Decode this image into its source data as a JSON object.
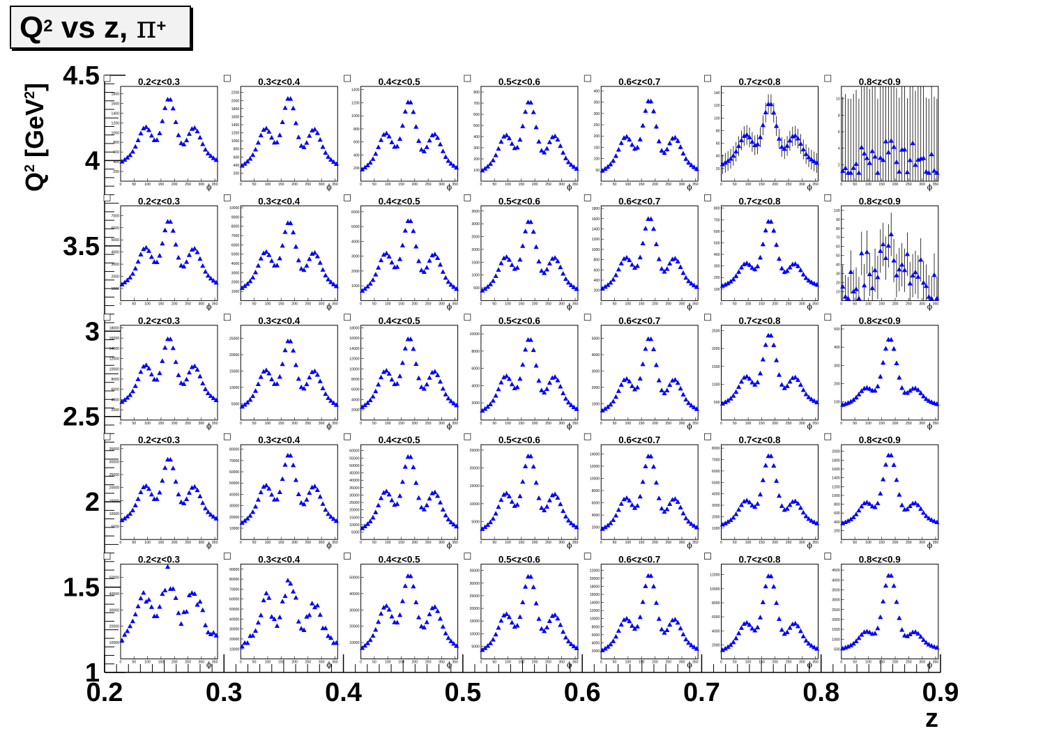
{
  "title": {
    "base": "Q",
    "sup": "2",
    "middle": " vs z, ",
    "pi": "π",
    "plus": "+"
  },
  "y_axis_title": {
    "base": "Q",
    "sup": "2",
    "rest": " [GeV",
    "sup2": "2",
    "end": "]"
  },
  "x_axis_title": "z",
  "colors": {
    "marker": "#0000ff",
    "axis": "#000000",
    "background": "#ffffff"
  },
  "chart_data": {
    "type": "scatter",
    "description_of_grid": "rows are Q2 bins (top = highest), columns are z bins",
    "outer_x": {
      "label": "z",
      "ticks": [
        "0.2",
        "0.3",
        "0.4",
        "0.5",
        "0.6",
        "0.7",
        "0.8",
        "0.9"
      ],
      "range": [
        0.2,
        0.9
      ]
    },
    "outer_y": {
      "label": "Q² [GeV²]",
      "ticks": [
        "1",
        "1.5",
        "2",
        "2.5",
        "3",
        "3.5",
        "4",
        "4.5"
      ],
      "range": [
        1,
        4.5
      ]
    },
    "panel_x_axis": {
      "label": "ϕ",
      "ticks": [
        "0",
        "50",
        "100",
        "150",
        "200",
        "250",
        "300",
        "350"
      ],
      "range": [
        0,
        360
      ]
    },
    "z_bins": [
      "0.2<z<0.3",
      "0.3<z<0.4",
      "0.4<z<0.5",
      "0.5<z<0.6",
      "0.6<z<0.7",
      "0.7<z<0.8",
      "0.8<z<0.9"
    ],
    "rows": [
      {
        "yticks": [
          [
            200,
            "200"
          ],
          [
            400,
            "400"
          ],
          [
            600,
            "600"
          ],
          [
            800,
            "800"
          ],
          [
            1000,
            "1000"
          ],
          [
            1200,
            "1200"
          ],
          [
            1400,
            "1400"
          ],
          [
            1600,
            "1600"
          ],
          [
            1800,
            "1800"
          ]
        ],
        "ymax": 1950,
        "panels": [
          {
            "ymax": 1950,
            "yticks": [
              200,
              400,
              600,
              800,
              1000,
              1200,
              1400,
              1600,
              1800
            ],
            "peak": 1800,
            "base": 300,
            "side": 0.62,
            "err": 0
          },
          {
            "ymax": 2350,
            "yticks": [
              200,
              400,
              600,
              800,
              1000,
              1200,
              1400,
              1600,
              1800,
              2000,
              2200
            ],
            "peak": 2200,
            "base": 250,
            "side": 0.62,
            "err": 0
          },
          {
            "ymax": 1450,
            "yticks": [
              200,
              400,
              600,
              800,
              1000,
              1200,
              1400
            ],
            "peak": 1300,
            "base": 100,
            "side": 0.6,
            "err": 0
          },
          {
            "ymax": 850,
            "yticks": [
              100,
              200,
              300,
              400,
              500,
              600,
              700,
              800
            ],
            "peak": 760,
            "base": 50,
            "side": 0.58,
            "err": 0
          },
          {
            "ymax": 420,
            "yticks": [
              50,
              100,
              150,
              200,
              250,
              300,
              350,
              400
            ],
            "peak": 380,
            "base": 25,
            "side": 0.55,
            "err": 8
          },
          {
            "ymax": 150,
            "yticks": [
              20,
              40,
              60,
              80,
              100,
              120,
              140
            ],
            "peak": 130,
            "base": 20,
            "side": 0.55,
            "err": 12
          },
          {
            "ymax": 11.5,
            "yticks": [
              2,
              4,
              6,
              8,
              10
            ],
            "peak": 5,
            "base": 1,
            "side": 0.6,
            "err": 3,
            "noisy": true
          }
        ]
      },
      {
        "panels": [
          {
            "ymax": 7800,
            "yticks": [
              1000,
              2000,
              3000,
              4000,
              5000,
              6000,
              7000
            ],
            "peak": 7000,
            "base": 900,
            "side": 0.65,
            "err": 0
          },
          {
            "ymax": 10200,
            "yticks": [
              1000,
              2000,
              3000,
              4000,
              5000,
              6000,
              7000,
              8000,
              9000,
              10000
            ],
            "peak": 9000,
            "base": 800,
            "side": 0.62,
            "err": 0
          },
          {
            "ymax": 6400,
            "yticks": [
              1000,
              2000,
              3000,
              4000,
              5000,
              6000
            ],
            "peak": 5800,
            "base": 300,
            "side": 0.6,
            "err": 0
          },
          {
            "ymax": 3700,
            "yticks": [
              500,
              1000,
              1500,
              2000,
              2500,
              3000,
              3500
            ],
            "peak": 3300,
            "base": 200,
            "side": 0.55,
            "err": 0
          },
          {
            "ymax": 1850,
            "yticks": [
              200,
              400,
              600,
              800,
              1000,
              1200,
              1400,
              1600,
              1800
            ],
            "peak": 1700,
            "base": 150,
            "side": 0.5,
            "err": 0
          },
          {
            "ymax": 820,
            "yticks": [
              100,
              200,
              300,
              400,
              500,
              600,
              700,
              800
            ],
            "peak": 720,
            "base": 100,
            "side": 0.4,
            "err": 15
          },
          {
            "ymax": 105,
            "yticks": [
              10,
              20,
              30,
              40,
              50,
              60,
              70,
              80,
              90,
              100
            ],
            "peak": 80,
            "base": 10,
            "side": 0.35,
            "err": 8,
            "noisy": true
          }
        ]
      },
      {
        "panels": [
          {
            "ymax": 18500,
            "yticks": [
              2000,
              4000,
              6000,
              8000,
              10000,
              12000,
              14000,
              16000,
              18000
            ],
            "peak": 17000,
            "base": 2500,
            "side": 0.65,
            "err": 0
          },
          {
            "ymax": 29000,
            "yticks": [
              5000,
              10000,
              15000,
              20000,
              25000
            ],
            "peak": 26000,
            "base": 2500,
            "side": 0.62,
            "err": 0
          },
          {
            "ymax": 18500,
            "yticks": [
              2000,
              4000,
              6000,
              8000,
              10000,
              12000,
              14000,
              16000,
              18000
            ],
            "peak": 17000,
            "base": 1500,
            "side": 0.6,
            "err": 0
          },
          {
            "ymax": 11000,
            "yticks": [
              2000,
              4000,
              6000,
              8000,
              10000
            ],
            "peak": 10000,
            "base": 500,
            "side": 0.55,
            "err": 0
          },
          {
            "ymax": 5800,
            "yticks": [
              1000,
              2000,
              3000,
              4000,
              5000
            ],
            "peak": 5300,
            "base": 300,
            "side": 0.5,
            "err": 0
          },
          {
            "ymax": 2650,
            "yticks": [
              500,
              1000,
              1500,
              2000,
              2500
            ],
            "peak": 2500,
            "base": 350,
            "side": 0.45,
            "err": 0
          },
          {
            "ymax": 520,
            "yticks": [
              100,
              200,
              300,
              400,
              500
            ],
            "peak": 460,
            "base": 70,
            "side": 0.3,
            "err": 10
          }
        ]
      },
      {
        "panels": [
          {
            "ymax": 36500,
            "yticks": [
              5000,
              10000,
              15000,
              20000,
              25000,
              30000,
              35000
            ],
            "peak": 33000,
            "base": 5500,
            "side": 0.63,
            "err": 0
          },
          {
            "ymax": 84000,
            "yticks": [
              10000,
              20000,
              30000,
              40000,
              50000,
              60000,
              70000,
              80000
            ],
            "peak": 80000,
            "base": 10000,
            "side": 0.62,
            "err": 0
          },
          {
            "ymax": 64000,
            "yticks": [
              5000,
              10000,
              15000,
              20000,
              25000,
              30000,
              35000,
              40000,
              45000,
              50000,
              55000,
              60000
            ],
            "peak": 60000,
            "base": 4000,
            "side": 0.58,
            "err": 0
          },
          {
            "ymax": 26500,
            "yticks": [
              5000,
              10000,
              15000,
              20000,
              25000
            ],
            "peak": 25000,
            "base": 1500,
            "side": 0.55,
            "err": 0
          },
          {
            "ymax": 15500,
            "yticks": [
              2000,
              4000,
              6000,
              8000,
              10000,
              12000,
              14000
            ],
            "peak": 14500,
            "base": 1000,
            "side": 0.48,
            "err": 0
          },
          {
            "ymax": 8300,
            "yticks": [
              1000,
              2000,
              3000,
              4000,
              5000,
              6000,
              7000,
              8000
            ],
            "peak": 7700,
            "base": 1000,
            "side": 0.4,
            "err": 0
          },
          {
            "ymax": 2150,
            "yticks": [
              200,
              400,
              600,
              800,
              1000,
              1200,
              1400,
              1600,
              1800,
              2000
            ],
            "peak": 2000,
            "base": 300,
            "side": 0.35,
            "err": 0
          }
        ]
      },
      {
        "panels": [
          {
            "ymax": 58000,
            "yticks": [
              10000,
              20000,
              30000,
              40000,
              50000
            ],
            "peak": 55000,
            "base": 8000,
            "side": 0.82,
            "err": 0,
            "scatter": true
          },
          {
            "ymax": 95000,
            "yticks": [
              10000,
              20000,
              30000,
              40000,
              50000,
              60000,
              70000,
              80000,
              90000
            ],
            "peak": 90000,
            "base": 5000,
            "side": 0.75,
            "err": 0,
            "scatter": true
          },
          {
            "ymax": 58000,
            "yticks": [
              10000,
              20000,
              30000,
              40000,
              50000
            ],
            "peak": 55000,
            "base": 3000,
            "side": 0.65,
            "err": 0
          },
          {
            "ymax": 37500,
            "yticks": [
              5000,
              10000,
              15000,
              20000,
              25000,
              30000,
              35000
            ],
            "peak": 35000,
            "base": 1500,
            "side": 0.55,
            "err": 0
          },
          {
            "ymax": 23500,
            "yticks": [
              2000,
              4000,
              6000,
              8000,
              10000,
              12000,
              14000,
              16000,
              18000,
              20000,
              22000
            ],
            "peak": 22000,
            "base": 1000,
            "side": 0.48,
            "err": 0
          },
          {
            "ymax": 13500,
            "yticks": [
              2000,
              4000,
              6000,
              8000,
              10000,
              12000
            ],
            "peak": 12500,
            "base": 700,
            "side": 0.42,
            "err": 0
          },
          {
            "ymax": 4800,
            "yticks": [
              500,
              1000,
              1500,
              2000,
              2500,
              3000,
              3500,
              4000,
              4500
            ],
            "peak": 4400,
            "base": 400,
            "side": 0.27,
            "err": 0
          }
        ]
      }
    ]
  }
}
